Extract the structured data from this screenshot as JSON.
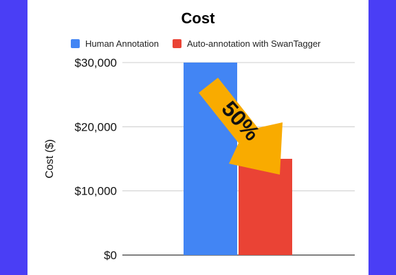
{
  "chart_data": {
    "type": "bar",
    "title": "Cost",
    "ylabel": "Cost ($)",
    "xlabel": "",
    "categories": [
      ""
    ],
    "series": [
      {
        "name": "Human Annotation",
        "values": [
          30000
        ],
        "color": "#4285f4"
      },
      {
        "name": "Auto-annotation with SwanTagger",
        "values": [
          15000
        ],
        "color": "#ea4335"
      }
    ],
    "ylim": [
      0,
      30000
    ],
    "yticks": [
      {
        "value": 0,
        "label": "$0"
      },
      {
        "value": 10000,
        "label": "$10,000"
      },
      {
        "value": 20000,
        "label": "$20,000"
      },
      {
        "value": 30000,
        "label": "$30,000"
      }
    ],
    "grid": true,
    "legend_position": "top",
    "annotation": {
      "text": "50%",
      "color": "#f9ab00",
      "shape": "arrow-down-right"
    }
  },
  "colors": {
    "background": "#4a3ef5",
    "panel": "#ffffff",
    "grid": "#cccccc",
    "axis": "#333333"
  }
}
